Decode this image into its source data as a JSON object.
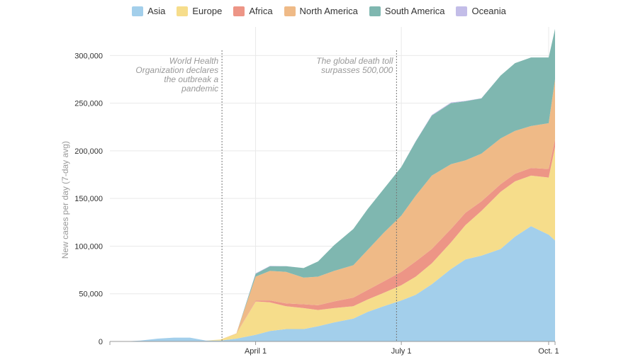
{
  "chart_data": {
    "type": "area",
    "stacked": true,
    "ylabel": "New cases per day (7-day avg)",
    "ylim": [
      0,
      330000
    ],
    "y_ticks": [
      0,
      50000,
      100000,
      150000,
      200000,
      250000,
      300000
    ],
    "y_tick_labels": [
      "0",
      "50,000",
      "100,000",
      "150,000",
      "200,000",
      "250,000",
      "300,000"
    ],
    "x": [
      "Jan 10",
      "Jan 20",
      "Jan 31",
      "Feb 10",
      "Feb 20",
      "Mar 1",
      "Mar 10",
      "Mar 20",
      "Apr 1",
      "Apr 10",
      "Apr 20",
      "May 1",
      "May 10",
      "May 20",
      "Jun 1",
      "Jun 10",
      "Jun 20",
      "Jul 1",
      "Jul 10",
      "Jul 20",
      "Aug 1",
      "Aug 10",
      "Aug 20",
      "Sep 1",
      "Sep 10",
      "Sep 20",
      "Oct 1",
      "Oct 5"
    ],
    "x_tick_labels": [
      "April 1",
      "July 1",
      "Oct. 1"
    ],
    "grid": true,
    "legend_position": "top",
    "series": [
      {
        "name": "Asia",
        "color": "#a3cfeb",
        "values": [
          0,
          1000,
          3000,
          4000,
          4000,
          1000,
          1000,
          3000,
          7000,
          11000,
          13000,
          13000,
          16000,
          20000,
          24000,
          31000,
          37000,
          43000,
          49000,
          60000,
          76000,
          86000,
          90000,
          97000,
          110000,
          121000,
          112000,
          106000
        ]
      },
      {
        "name": "Europe",
        "color": "#f6dd8b",
        "values": [
          0,
          0,
          0,
          0,
          0,
          0,
          1000,
          5000,
          35000,
          30000,
          24000,
          22000,
          17000,
          15000,
          13000,
          13000,
          14000,
          16000,
          19000,
          22000,
          28000,
          36000,
          47000,
          60000,
          58000,
          53000,
          60000,
          98000
        ]
      },
      {
        "name": "Africa",
        "color": "#ed9586",
        "values": [
          0,
          0,
          0,
          0,
          0,
          0,
          0,
          0,
          1000,
          2000,
          3000,
          4000,
          5000,
          7000,
          9000,
          10000,
          12000,
          14000,
          16000,
          15000,
          14000,
          13000,
          10000,
          8000,
          8000,
          8000,
          9000,
          8000
        ]
      },
      {
        "name": "North America",
        "color": "#efba87",
        "values": [
          0,
          0,
          0,
          0,
          0,
          0,
          0,
          500,
          25000,
          31000,
          33000,
          28000,
          30000,
          32000,
          34000,
          42000,
          51000,
          59000,
          69000,
          77000,
          68000,
          55000,
          50000,
          48000,
          45000,
          44000,
          48000,
          63000
        ]
      },
      {
        "name": "South America",
        "color": "#7fb7b0",
        "values": [
          0,
          0,
          0,
          0,
          0,
          0,
          0,
          0,
          3000,
          5000,
          6000,
          10000,
          16000,
          27000,
          38000,
          43000,
          46000,
          51000,
          57000,
          63000,
          64000,
          62000,
          58000,
          66000,
          71000,
          72000,
          69000,
          53000
        ]
      },
      {
        "name": "Oceania",
        "color": "#c3bde8",
        "values": [
          0,
          0,
          0,
          0,
          0,
          0,
          0,
          0,
          500,
          300,
          100,
          0,
          0,
          0,
          0,
          0,
          0,
          0,
          300,
          600,
          800,
          400,
          200,
          0,
          0,
          0,
          0,
          0
        ]
      }
    ],
    "annotations": [
      {
        "at": "Mar 11",
        "lines": [
          "World Health",
          "Organization declares",
          "the outbreak a",
          "pandemic"
        ]
      },
      {
        "at": "Jun 28",
        "lines": [
          "The global death toll",
          "surpasses 500,000"
        ]
      }
    ]
  }
}
